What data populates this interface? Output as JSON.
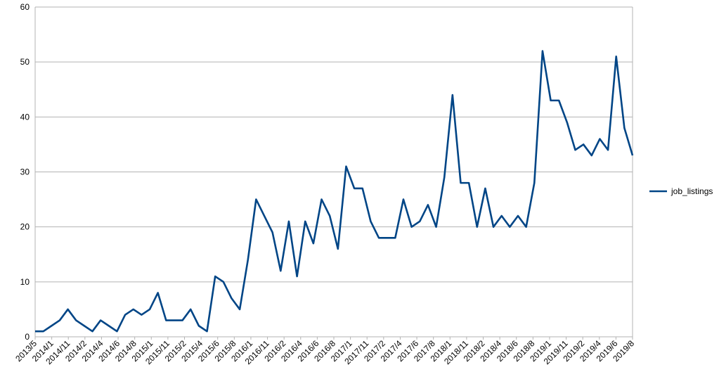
{
  "chart_data": {
    "type": "line",
    "title": "",
    "xlabel": "",
    "ylabel": "",
    "ylim": [
      0,
      60
    ],
    "yticks": [
      0,
      10,
      20,
      30,
      40,
      50,
      60
    ],
    "grid": "horizontal",
    "legend_position": "right",
    "x_tick_labels": [
      "2013/5",
      "2014/1",
      "2014/11",
      "2014/2",
      "2014/4",
      "2014/6",
      "2014/8",
      "2015/1",
      "2015/11",
      "2015/2",
      "2015/4",
      "2015/6",
      "2015/8",
      "2016/1",
      "2016/11",
      "2016/2",
      "2016/4",
      "2016/6",
      "2016/8",
      "2017/1",
      "2017/11",
      "2017/2",
      "2017/4",
      "2017/6",
      "2017/8",
      "2018/1",
      "2018/11",
      "2018/2",
      "2018/4",
      "2018/6",
      "2018/8",
      "2019/1",
      "2019/11",
      "2019/2",
      "2019/4",
      "2019/6",
      "2019/8"
    ],
    "series": [
      {
        "name": "job_listings",
        "color": "#004586",
        "values": [
          1,
          1,
          2,
          3,
          5,
          3,
          2,
          1,
          3,
          2,
          1,
          4,
          5,
          4,
          5,
          8,
          3,
          3,
          3,
          5,
          2,
          1,
          11,
          10,
          7,
          5,
          14,
          25,
          22,
          19,
          12,
          21,
          11,
          21,
          17,
          25,
          22,
          16,
          31,
          27,
          27,
          21,
          18,
          18,
          18,
          25,
          20,
          21,
          24,
          20,
          29,
          44,
          28,
          28,
          20,
          27,
          20,
          22,
          20,
          22,
          20,
          28,
          52,
          43,
          43,
          39,
          34,
          35,
          33,
          36,
          34,
          51,
          38,
          33
        ]
      }
    ]
  }
}
